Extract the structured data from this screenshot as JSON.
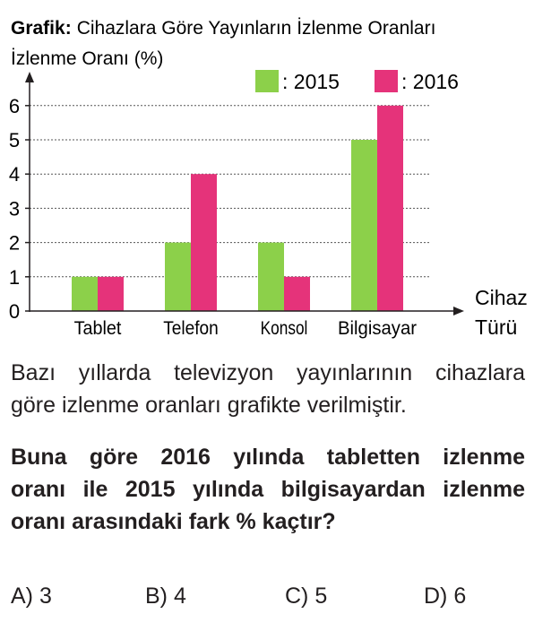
{
  "chart_data": {
    "type": "bar",
    "title_prefix": "Grafik:",
    "title": "Cihazlara Göre Yayınların İzlenme Oranları",
    "ylabel": "İzlenme Oranı (%)",
    "xlabel_line1": "Cihaz",
    "xlabel_line2": "Türü",
    "categories": [
      "Tablet",
      "Telefon",
      "Konsol",
      "Bilgisayar"
    ],
    "series": [
      {
        "name": ": 2015",
        "values": [
          1,
          2,
          2,
          5
        ],
        "color": "#8cd04a"
      },
      {
        "name": ": 2016",
        "values": [
          1,
          4,
          1,
          6
        ],
        "color": "#e5337a"
      }
    ],
    "yticks": [
      "0",
      "1",
      "2",
      "3",
      "4",
      "5",
      "6"
    ],
    "ylim": [
      0,
      6
    ],
    "grid": "dotted horizontal",
    "legend_position": "top-right"
  },
  "text": {
    "paragraph_line1": "Bazı yıllarda televizyon yayınlarının cihazlara",
    "paragraph_line2": "göre izlenme oranları grafikte verilmiştir.",
    "question_line1": "Buna göre 2016 yılında tabletten izlenme",
    "question_line2": "oranı ile 2015 yılında bilgisayardan izlenme",
    "question_line3": "oranı arasındaki fark % kaçtır?"
  },
  "options": [
    {
      "letter": "A)",
      "value": "3"
    },
    {
      "letter": "B)",
      "value": "4"
    },
    {
      "letter": "C)",
      "value": "5"
    },
    {
      "letter": "D)",
      "value": "6"
    }
  ]
}
